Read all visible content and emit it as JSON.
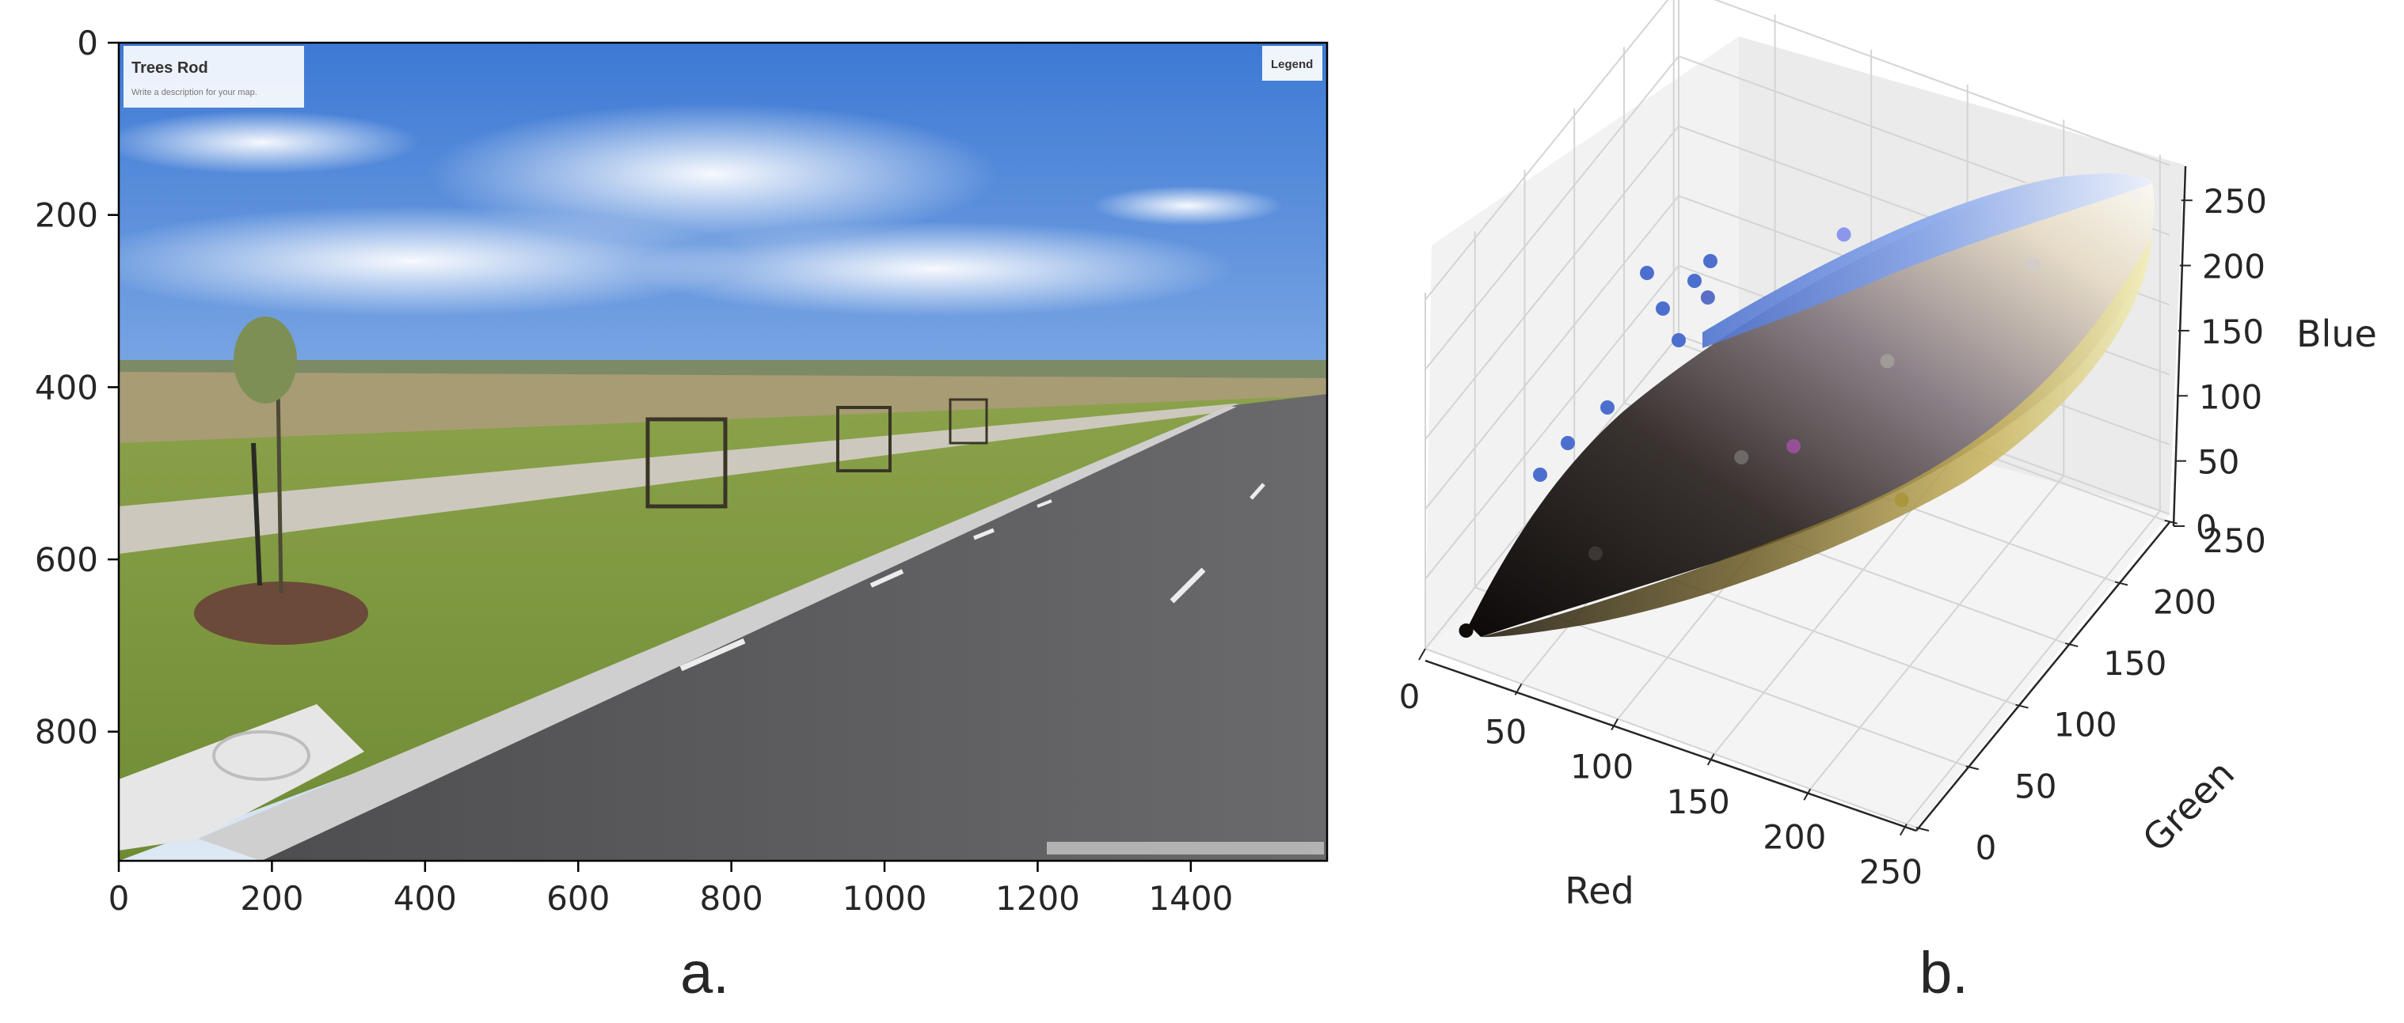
{
  "panel_a": {
    "caption": "a.",
    "photo": {
      "overlay_title": "Trees Rod",
      "overlay_subtitle": "Write a description for your map.",
      "legend_label": "Legend",
      "colors": {
        "sky": "#5d8fd8",
        "grass": "#7f9a3e",
        "road": "#5f5f61",
        "path": "#c9c5bb"
      }
    }
  },
  "panel_b": {
    "caption": "b."
  },
  "chart_data": [
    {
      "type": "image",
      "title": "",
      "x": {
        "label": "",
        "range": [
          0,
          1578
        ],
        "ticks": [
          0,
          200,
          400,
          600,
          800,
          1000,
          1200,
          1400
        ]
      },
      "y": {
        "label": "",
        "range": [
          0,
          950
        ],
        "inverted": true,
        "ticks": [
          0,
          200,
          400,
          600,
          800
        ]
      }
    },
    {
      "type": "scatter3d",
      "title": "",
      "x": {
        "label": "Red",
        "range": [
          0,
          255
        ],
        "ticks": [
          0,
          50,
          100,
          150,
          200,
          250
        ]
      },
      "y": {
        "label": "Green",
        "range": [
          0,
          255
        ],
        "ticks": [
          0,
          50,
          100,
          150,
          200,
          250
        ]
      },
      "z": {
        "label": "Blue",
        "range": [
          0,
          255
        ],
        "ticks": [
          0,
          50,
          100,
          150,
          200,
          250
        ]
      },
      "grid": true,
      "point_color": "rgb(Red, Green, Blue)",
      "cloud": [
        {
          "r": 15,
          "g": 12,
          "b": 10
        },
        {
          "r": 60,
          "g": 55,
          "b": 50
        },
        {
          "r": 110,
          "g": 105,
          "b": 100
        },
        {
          "r": 160,
          "g": 155,
          "b": 150
        },
        {
          "r": 210,
          "g": 205,
          "b": 200
        },
        {
          "r": 245,
          "g": 240,
          "b": 235
        },
        {
          "r": 90,
          "g": 110,
          "b": 200
        },
        {
          "r": 140,
          "g": 150,
          "b": 235
        },
        {
          "r": 170,
          "g": 150,
          "b": 60
        },
        {
          "r": 150,
          "g": 80,
          "b": 150
        }
      ]
    }
  ]
}
